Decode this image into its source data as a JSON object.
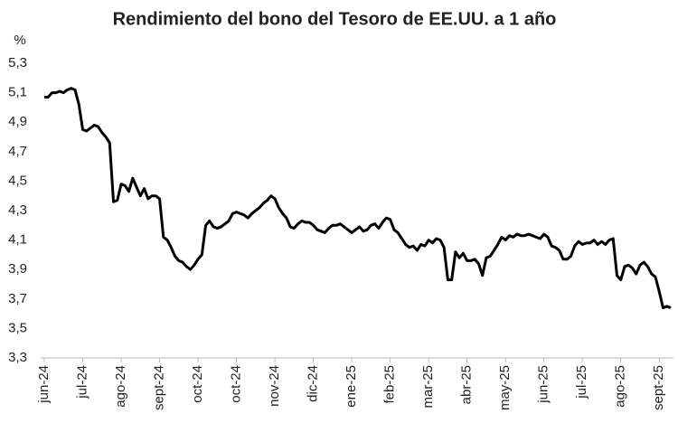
{
  "chart_data": {
    "type": "line",
    "title": "Rendimiento del bono del Tesoro de EE.UU. a 1 año",
    "y_label": "%",
    "series": [
      {
        "color": "#000000",
        "values": [
          5.07,
          5.07,
          5.1,
          5.1,
          5.11,
          5.1,
          5.12,
          5.13,
          5.12,
          5.02,
          4.85,
          4.84,
          4.86,
          4.88,
          4.87,
          4.83,
          4.8,
          4.76,
          4.36,
          4.37,
          4.48,
          4.47,
          4.43,
          4.52,
          4.46,
          4.4,
          4.45,
          4.38,
          4.4,
          4.4,
          4.38,
          4.12,
          4.1,
          4.05,
          3.99,
          3.96,
          3.95,
          3.92,
          3.9,
          3.93,
          3.97,
          4.0,
          4.2,
          4.23,
          4.19,
          4.18,
          4.19,
          4.21,
          4.23,
          4.28,
          4.29,
          4.28,
          4.27,
          4.25,
          4.28,
          4.3,
          4.32,
          4.35,
          4.37,
          4.4,
          4.38,
          4.32,
          4.28,
          4.25,
          4.19,
          4.18,
          4.21,
          4.23,
          4.22,
          4.22,
          4.2,
          4.17,
          4.16,
          4.15,
          4.18,
          4.2,
          4.2,
          4.21,
          4.19,
          4.17,
          4.15,
          4.17,
          4.19,
          4.16,
          4.17,
          4.2,
          4.21,
          4.18,
          4.22,
          4.25,
          4.24,
          4.17,
          4.15,
          4.11,
          4.07,
          4.05,
          4.06,
          4.03,
          4.07,
          4.06,
          4.1,
          4.08,
          4.11,
          4.1,
          4.05,
          3.83,
          3.83,
          4.02,
          3.98,
          4.01,
          3.96,
          3.96,
          3.97,
          3.94,
          3.86,
          3.98,
          3.99,
          4.03,
          4.07,
          4.12,
          4.1,
          4.13,
          4.12,
          4.14,
          4.13,
          4.13,
          4.14,
          4.13,
          4.12,
          4.11,
          4.14,
          4.12,
          4.06,
          4.05,
          4.03,
          3.97,
          3.97,
          3.99,
          4.06,
          4.09,
          4.07,
          4.08,
          4.08,
          4.1,
          4.07,
          4.09,
          4.07,
          4.1,
          4.11,
          3.86,
          3.83,
          3.92,
          3.93,
          3.91,
          3.87,
          3.93,
          3.95,
          3.92,
          3.87,
          3.85,
          3.75,
          3.64,
          3.65,
          3.64
        ]
      }
    ],
    "xlim": [
      0,
      163
    ],
    "xticks": [
      {
        "value": 0,
        "label": "jun-24"
      },
      {
        "value": 10,
        "label": "jul-24"
      },
      {
        "value": 20,
        "label": "ago-24"
      },
      {
        "value": 30,
        "label": "sept-24"
      },
      {
        "value": 40,
        "label": "oct-24"
      },
      {
        "value": 50,
        "label": "oct-24"
      },
      {
        "value": 60,
        "label": "nov-24"
      },
      {
        "value": 70,
        "label": "dic-24"
      },
      {
        "value": 80,
        "label": "ene-25"
      },
      {
        "value": 90,
        "label": "feb-25"
      },
      {
        "value": 100,
        "label": "mar-25"
      },
      {
        "value": 110,
        "label": "abr-25"
      },
      {
        "value": 120,
        "label": "may-25"
      },
      {
        "value": 130,
        "label": "jun-25"
      },
      {
        "value": 140,
        "label": "jul-25"
      },
      {
        "value": 150,
        "label": "ago-25"
      },
      {
        "value": 160,
        "label": "sept-25"
      }
    ],
    "ylim": [
      3.3,
      5.3
    ],
    "yticks": [
      {
        "value": 3.3,
        "label": "3,3"
      },
      {
        "value": 3.5,
        "label": "3,5"
      },
      {
        "value": 3.7,
        "label": "3,7"
      },
      {
        "value": 3.9,
        "label": "3,9"
      },
      {
        "value": 4.1,
        "label": "4,1"
      },
      {
        "value": 4.3,
        "label": "4,3"
      },
      {
        "value": 4.5,
        "label": "4,5"
      },
      {
        "value": 4.7,
        "label": "4,7"
      },
      {
        "value": 4.9,
        "label": "4,9"
      },
      {
        "value": 5.1,
        "label": "5,1"
      },
      {
        "value": 5.3,
        "label": "5,3"
      }
    ],
    "grid": false
  }
}
